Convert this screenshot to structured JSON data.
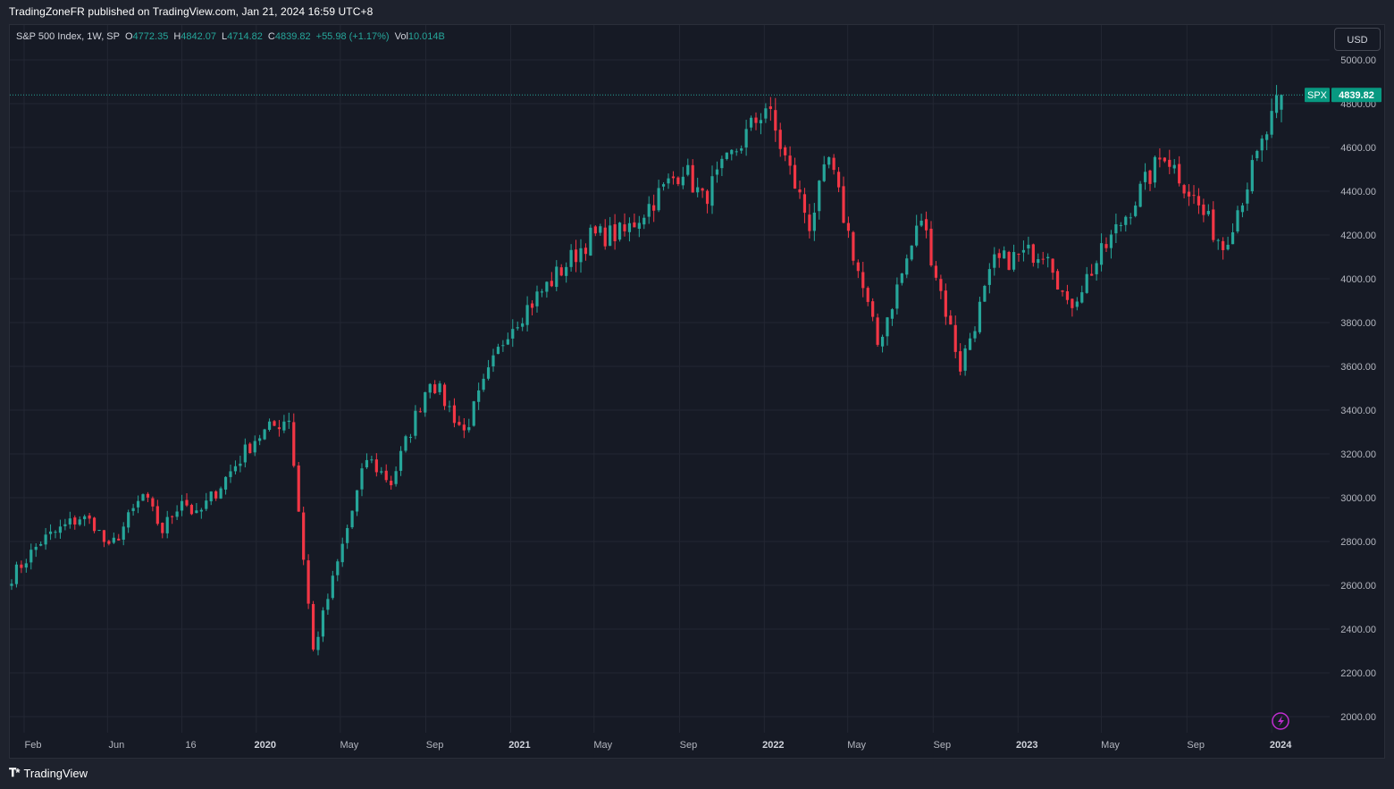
{
  "header": {
    "published": "TradingZoneFR published on TradingView.com, Jan 21, 2024 16:59 UTC+8"
  },
  "legend": {
    "symbol": "S&P 500 Index, 1W, SP",
    "open_label": "O",
    "open": "4772.35",
    "high_label": "H",
    "high": "4842.07",
    "low_label": "L",
    "low": "4714.82",
    "close_label": "C",
    "close": "4839.82",
    "change": "+55.98 (+1.17%)",
    "vol_label": "Vol",
    "vol": "10.014B"
  },
  "currency": "USD",
  "price_tag": {
    "symbol": "SPX",
    "price": "4839.82"
  },
  "footer": {
    "brand": "TradingView"
  },
  "colors": {
    "up": "#26a69a",
    "down": "#f23645",
    "grid": "#232733",
    "axis_text": "#b2b5be",
    "background": "#161a25",
    "tag": "#089981",
    "alert": "#c02ccf"
  },
  "icons": {
    "alert": "lightning-icon",
    "logo": "tradingview-logo-icon"
  },
  "chart_data": {
    "type": "candlestick",
    "title": "S&P 500 Index, 1W, SP",
    "xlabel": "",
    "ylabel": "",
    "ylim": [
      1900,
      5070
    ],
    "y_ticks": [
      "5000.00",
      "4800.00",
      "4600.00",
      "4400.00",
      "4200.00",
      "4000.00",
      "3800.00",
      "3600.00",
      "3400.00",
      "3200.00",
      "3000.00",
      "2800.00",
      "2600.00",
      "2400.00",
      "2200.00",
      "2000.00"
    ],
    "x_ticks": [
      {
        "label": "Feb",
        "bold": false,
        "date": "2019-02"
      },
      {
        "label": "Jun",
        "bold": false,
        "date": "2019-06"
      },
      {
        "label": "16",
        "bold": false,
        "date": "2019-09-16"
      },
      {
        "label": "2020",
        "bold": true,
        "date": "2020-01"
      },
      {
        "label": "May",
        "bold": false,
        "date": "2020-05"
      },
      {
        "label": "Sep",
        "bold": false,
        "date": "2020-09"
      },
      {
        "label": "2021",
        "bold": true,
        "date": "2021-01"
      },
      {
        "label": "May",
        "bold": false,
        "date": "2021-05"
      },
      {
        "label": "Sep",
        "bold": false,
        "date": "2021-09"
      },
      {
        "label": "2022",
        "bold": true,
        "date": "2022-01"
      },
      {
        "label": "May",
        "bold": false,
        "date": "2022-05"
      },
      {
        "label": "Sep",
        "bold": false,
        "date": "2022-09"
      },
      {
        "label": "2023",
        "bold": true,
        "date": "2023-01"
      },
      {
        "label": "May",
        "bold": false,
        "date": "2023-05"
      },
      {
        "label": "Sep",
        "bold": false,
        "date": "2023-09"
      },
      {
        "label": "2024",
        "bold": true,
        "date": "2024-01"
      }
    ],
    "last_price": 4839.82,
    "grid": true,
    "weekly_close_path": [
      [
        "2019-01-14",
        2640
      ],
      [
        "2019-02-25",
        2800
      ],
      [
        "2019-04-22",
        2910
      ],
      [
        "2019-05-13",
        2880
      ],
      [
        "2019-06-03",
        2760
      ],
      [
        "2019-07-22",
        3010
      ],
      [
        "2019-08-19",
        2850
      ],
      [
        "2019-09-16",
        3000
      ],
      [
        "2019-10-07",
        2910
      ],
      [
        "2019-12-30",
        3270
      ],
      [
        "2020-02-17",
        3370
      ],
      [
        "2020-03-23",
        2300
      ],
      [
        "2020-06-08",
        3180
      ],
      [
        "2020-07-13",
        3070
      ],
      [
        "2020-09-07",
        3550
      ],
      [
        "2020-10-26",
        3300
      ],
      [
        "2020-12-28",
        3770
      ],
      [
        "2021-04-26",
        4190
      ],
      [
        "2021-06-14",
        4210
      ],
      [
        "2021-09-06",
        4510
      ],
      [
        "2021-10-04",
        4360
      ],
      [
        "2022-01-03",
        4790
      ],
      [
        "2022-03-07",
        4250
      ],
      [
        "2022-04-04",
        4540
      ],
      [
        "2022-06-13",
        3700
      ],
      [
        "2022-08-15",
        4280
      ],
      [
        "2022-10-10",
        3600
      ],
      [
        "2022-11-28",
        4070
      ],
      [
        "2023-02-13",
        4140
      ],
      [
        "2023-03-13",
        3860
      ],
      [
        "2023-07-31",
        4580
      ],
      [
        "2023-10-23",
        4150
      ],
      [
        "2024-01-15",
        4839.82
      ]
    ]
  }
}
